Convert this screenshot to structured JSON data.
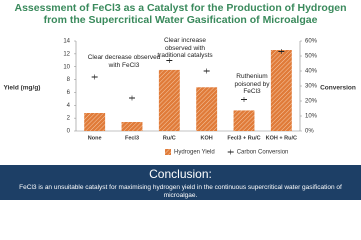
{
  "chart_data": {
    "type": "bar",
    "title": "Assessment of FeCl3 as a Catalyst for the Production of Hydrogen from the Supercritical Water Gasification of Microalgae",
    "y_label": "Yield (mg/g)",
    "y2_label": "Conversion",
    "categories": [
      "None",
      "Fecl3",
      "Ru/C",
      "KOH",
      "Fecl3 + Ru/C",
      "KOH + Ru/C"
    ],
    "series": [
      {
        "name": "Hydrogen Yield",
        "color": "#e07b39",
        "values": [
          2.8,
          1.4,
          9.5,
          6.8,
          3.2,
          12.6
        ]
      },
      {
        "name": "Carbon Conversion",
        "color": "#222222",
        "axis": "y2",
        "values": [
          36,
          22,
          47,
          40,
          21,
          53
        ]
      }
    ],
    "ylim": [
      0,
      14
    ],
    "yticks": [
      0,
      2,
      4,
      6,
      8,
      10,
      12,
      14
    ],
    "y2lim": [
      0,
      60
    ],
    "y2ticks": [
      {
        "value": 0,
        "label": "0%"
      },
      {
        "value": 10,
        "label": "10%"
      },
      {
        "value": 20,
        "label": "20%"
      },
      {
        "value": 30,
        "label": "30%"
      },
      {
        "value": 40,
        "label": "40%"
      },
      {
        "value": 50,
        "label": "50%"
      },
      {
        "value": 60,
        "label": "60%"
      }
    ],
    "annotations": [
      "Clear decrease observed with FeCl3",
      "Clear increase observed with traditional catalysts",
      "Ruthenium poisoned by FeCl3"
    ],
    "conclusion_title": "Conclusion:",
    "conclusion_text": "FeCl3 is an unsuitable catalyst for maximising hydrogen yield in the continuous supercritical water gasification of microalgae."
  }
}
